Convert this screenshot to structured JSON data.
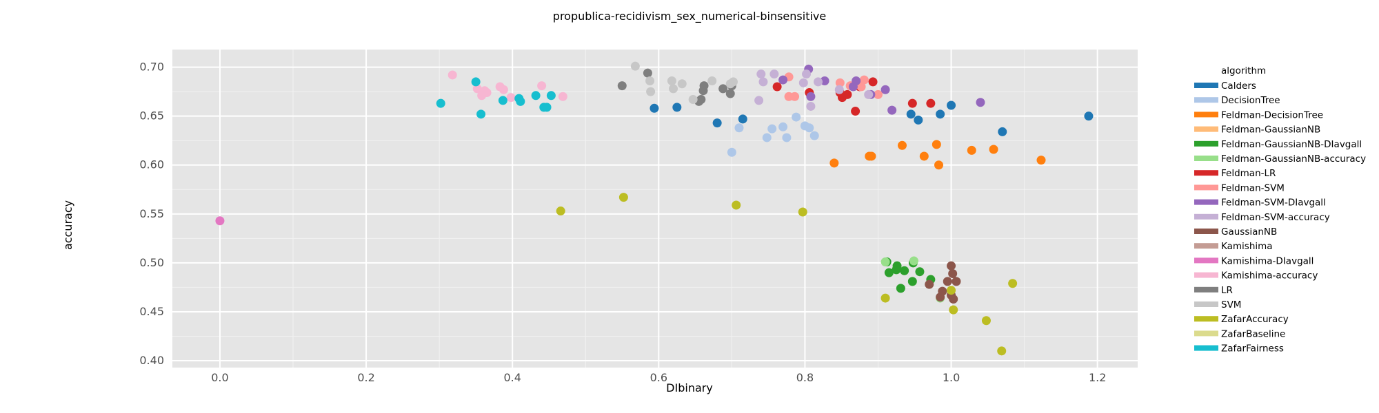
{
  "chart_data": {
    "type": "scatter",
    "title": "propublica-recidivism_sex_numerical-binsensitive",
    "xlabel": "DIbinary",
    "ylabel": "accuracy",
    "xlim": [
      -0.065,
      1.255
    ],
    "ylim": [
      0.393,
      0.718
    ],
    "x_ticks": [
      {
        "value": 0.0,
        "label": "0.0"
      },
      {
        "value": 0.2,
        "label": "0.2"
      },
      {
        "value": 0.4,
        "label": "0.4"
      },
      {
        "value": 0.6,
        "label": "0.6"
      },
      {
        "value": 0.8,
        "label": "0.8"
      },
      {
        "value": 1.0,
        "label": "1.0"
      },
      {
        "value": 1.2,
        "label": "1.2"
      }
    ],
    "y_ticks": [
      {
        "value": 0.4,
        "label": "0.40"
      },
      {
        "value": 0.45,
        "label": "0.45"
      },
      {
        "value": 0.5,
        "label": "0.50"
      },
      {
        "value": 0.55,
        "label": "0.55"
      },
      {
        "value": 0.6,
        "label": "0.60"
      },
      {
        "value": 0.65,
        "label": "0.65"
      },
      {
        "value": 0.7,
        "label": "0.70"
      }
    ],
    "grid": true,
    "legend": {
      "title": "algorithm",
      "placement": "right"
    },
    "series": [
      {
        "name": "Calders",
        "color": "#1f77b4",
        "points": [
          [
            0.594,
            0.658
          ],
          [
            0.625,
            0.659
          ],
          [
            0.68,
            0.643
          ],
          [
            0.715,
            0.647
          ],
          [
            0.945,
            0.652
          ],
          [
            0.955,
            0.646
          ],
          [
            0.985,
            0.652
          ],
          [
            1.0,
            0.661
          ],
          [
            1.07,
            0.634
          ],
          [
            1.188,
            0.65
          ]
        ]
      },
      {
        "name": "DecisionTree",
        "color": "#aec7e8",
        "points": [
          [
            0.7,
            0.613
          ],
          [
            0.71,
            0.638
          ],
          [
            0.748,
            0.628
          ],
          [
            0.755,
            0.637
          ],
          [
            0.77,
            0.639
          ],
          [
            0.775,
            0.628
          ],
          [
            0.788,
            0.649
          ],
          [
            0.8,
            0.64
          ],
          [
            0.806,
            0.638
          ],
          [
            0.813,
            0.63
          ]
        ]
      },
      {
        "name": "Feldman-DecisionTree",
        "color": "#ff7f0e",
        "points": [
          [
            0.84,
            0.602
          ],
          [
            0.888,
            0.609
          ],
          [
            0.891,
            0.609
          ],
          [
            0.933,
            0.62
          ],
          [
            0.963,
            0.609
          ],
          [
            0.98,
            0.621
          ],
          [
            0.983,
            0.6
          ],
          [
            1.028,
            0.615
          ],
          [
            1.058,
            0.616
          ],
          [
            1.123,
            0.605
          ]
        ]
      },
      {
        "name": "Feldman-GaussianNB",
        "color": "#ffbb78",
        "points": []
      },
      {
        "name": "Feldman-GaussianNB-DIavgall",
        "color": "#2ca02c",
        "points": [
          [
            0.912,
            0.501
          ],
          [
            0.915,
            0.49
          ],
          [
            0.925,
            0.493
          ],
          [
            0.926,
            0.497
          ],
          [
            0.931,
            0.474
          ],
          [
            0.936,
            0.492
          ],
          [
            0.947,
            0.481
          ],
          [
            0.948,
            0.5
          ],
          [
            0.957,
            0.491
          ],
          [
            0.972,
            0.483
          ]
        ]
      },
      {
        "name": "Feldman-GaussianNB-accuracy",
        "color": "#98df8a",
        "points": [
          [
            0.91,
            0.501
          ],
          [
            0.949,
            0.502
          ],
          [
            0.985,
            0.464
          ]
        ]
      },
      {
        "name": "Feldman-LR",
        "color": "#d62728",
        "points": [
          [
            0.762,
            0.68
          ],
          [
            0.806,
            0.674
          ],
          [
            0.848,
            0.674
          ],
          [
            0.851,
            0.669
          ],
          [
            0.858,
            0.672
          ],
          [
            0.869,
            0.655
          ],
          [
            0.875,
            0.68
          ],
          [
            0.893,
            0.685
          ],
          [
            0.947,
            0.663
          ],
          [
            0.972,
            0.663
          ]
        ]
      },
      {
        "name": "Feldman-SVM",
        "color": "#ff9896",
        "points": [
          [
            0.778,
            0.69
          ],
          [
            0.778,
            0.67
          ],
          [
            0.786,
            0.67
          ],
          [
            0.848,
            0.684
          ],
          [
            0.862,
            0.681
          ],
          [
            0.877,
            0.68
          ],
          [
            0.881,
            0.687
          ],
          [
            0.9,
            0.672
          ]
        ]
      },
      {
        "name": "Feldman-SVM-DIavgall",
        "color": "#9467bd",
        "points": [
          [
            0.77,
            0.687
          ],
          [
            0.805,
            0.698
          ],
          [
            0.808,
            0.67
          ],
          [
            0.827,
            0.686
          ],
          [
            0.866,
            0.68
          ],
          [
            0.87,
            0.686
          ],
          [
            0.89,
            0.672
          ],
          [
            0.91,
            0.677
          ],
          [
            0.919,
            0.656
          ],
          [
            1.04,
            0.664
          ]
        ]
      },
      {
        "name": "Feldman-SVM-accuracy",
        "color": "#c5b0d5",
        "points": [
          [
            0.737,
            0.666
          ],
          [
            0.74,
            0.693
          ],
          [
            0.743,
            0.685
          ],
          [
            0.758,
            0.693
          ],
          [
            0.798,
            0.684
          ],
          [
            0.802,
            0.693
          ],
          [
            0.808,
            0.66
          ],
          [
            0.818,
            0.685
          ],
          [
            0.847,
            0.677
          ],
          [
            0.887,
            0.672
          ]
        ]
      },
      {
        "name": "GaussianNB",
        "color": "#8c564b",
        "points": [
          [
            0.97,
            0.478
          ],
          [
            0.985,
            0.465
          ],
          [
            0.988,
            0.471
          ],
          [
            0.995,
            0.481
          ],
          [
            1.0,
            0.467
          ],
          [
            1.0,
            0.497
          ],
          [
            1.002,
            0.489
          ],
          [
            1.003,
            0.463
          ],
          [
            1.007,
            0.481
          ]
        ]
      },
      {
        "name": "Kamishima",
        "color": "#c49c94",
        "points": []
      },
      {
        "name": "Kamishima-DIavgall",
        "color": "#e377c2",
        "points": [
          [
            0.0,
            0.543
          ]
        ]
      },
      {
        "name": "Kamishima-accuracy",
        "color": "#f7b6d2",
        "points": [
          [
            0.318,
            0.692
          ],
          [
            0.352,
            0.678
          ],
          [
            0.358,
            0.671
          ],
          [
            0.362,
            0.676
          ],
          [
            0.365,
            0.674
          ],
          [
            0.383,
            0.68
          ],
          [
            0.388,
            0.677
          ],
          [
            0.398,
            0.669
          ],
          [
            0.44,
            0.681
          ],
          [
            0.469,
            0.67
          ]
        ]
      },
      {
        "name": "LR",
        "color": "#7f7f7f",
        "points": [
          [
            0.55,
            0.681
          ],
          [
            0.585,
            0.694
          ],
          [
            0.655,
            0.665
          ],
          [
            0.658,
            0.667
          ],
          [
            0.661,
            0.676
          ],
          [
            0.662,
            0.681
          ],
          [
            0.688,
            0.678
          ],
          [
            0.698,
            0.673
          ],
          [
            0.7,
            0.681
          ]
        ]
      },
      {
        "name": "SVM",
        "color": "#c7c7c7",
        "points": [
          [
            0.568,
            0.701
          ],
          [
            0.588,
            0.686
          ],
          [
            0.589,
            0.675
          ],
          [
            0.618,
            0.686
          ],
          [
            0.62,
            0.678
          ],
          [
            0.632,
            0.683
          ],
          [
            0.647,
            0.667
          ],
          [
            0.673,
            0.686
          ],
          [
            0.698,
            0.683
          ],
          [
            0.702,
            0.685
          ]
        ]
      },
      {
        "name": "ZafarAccuracy",
        "color": "#bcbd22",
        "points": [
          [
            0.466,
            0.553
          ],
          [
            0.552,
            0.567
          ],
          [
            0.706,
            0.559
          ],
          [
            0.797,
            0.552
          ],
          [
            0.91,
            0.464
          ],
          [
            1.0,
            0.472
          ],
          [
            1.003,
            0.452
          ],
          [
            1.048,
            0.441
          ],
          [
            1.069,
            0.41
          ],
          [
            1.084,
            0.479
          ]
        ]
      },
      {
        "name": "ZafarBaseline",
        "color": "#dbdb8d",
        "points": []
      },
      {
        "name": "ZafarFairness",
        "color": "#17becf",
        "points": [
          [
            0.302,
            0.663
          ],
          [
            0.35,
            0.685
          ],
          [
            0.357,
            0.652
          ],
          [
            0.387,
            0.666
          ],
          [
            0.432,
            0.671
          ],
          [
            0.409,
            0.668
          ],
          [
            0.411,
            0.665
          ],
          [
            0.443,
            0.659
          ],
          [
            0.447,
            0.659
          ],
          [
            0.453,
            0.671
          ]
        ]
      }
    ]
  }
}
